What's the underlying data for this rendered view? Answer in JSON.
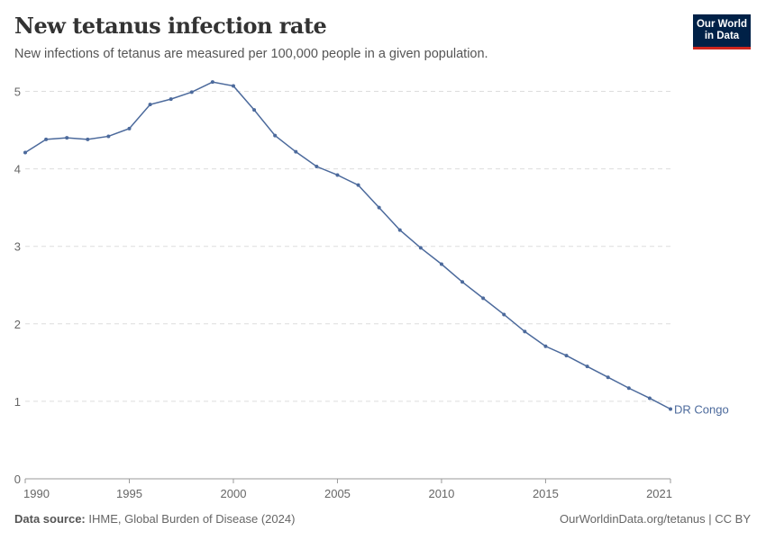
{
  "header": {
    "title": "New tetanus infection rate",
    "subtitle": "New infections of tetanus are measured per 100,000 people in a given population.",
    "logo": "Our World in Data"
  },
  "logo_lines": [
    "Our World",
    "in Data"
  ],
  "footer": {
    "source_label": "Data source:",
    "source": "IHME, Global Burden of Disease (2024)",
    "link": "OurWorldinData.org/tetanus | CC BY"
  },
  "colors": {
    "series": "#4c6a9c",
    "grid": "#dddddd",
    "logo_bg": "#002147",
    "logo_accent": "#ce261e"
  },
  "chart_data": {
    "type": "line",
    "title": "New tetanus infection rate",
    "xlabel": "",
    "ylabel": "",
    "ylim": [
      0,
      5.1
    ],
    "xlim": [
      1990,
      2021
    ],
    "grid": true,
    "yticks": [
      0,
      1,
      2,
      3,
      4,
      5
    ],
    "xticks": [
      1990,
      1995,
      2000,
      2005,
      2010,
      2015,
      2021
    ],
    "series": [
      {
        "name": "DR Congo",
        "x": [
          1990,
          1991,
          1992,
          1993,
          1994,
          1995,
          1996,
          1997,
          1998,
          1999,
          2000,
          2001,
          2002,
          2003,
          2004,
          2005,
          2006,
          2007,
          2008,
          2009,
          2010,
          2011,
          2012,
          2013,
          2014,
          2015,
          2016,
          2017,
          2018,
          2019,
          2020,
          2021
        ],
        "values": [
          4.21,
          4.38,
          4.4,
          4.38,
          4.42,
          4.52,
          4.83,
          4.9,
          4.99,
          5.12,
          5.07,
          4.76,
          4.43,
          4.22,
          4.03,
          3.92,
          3.79,
          3.5,
          3.21,
          2.98,
          2.77,
          2.54,
          2.33,
          2.12,
          1.9,
          1.71,
          1.59,
          1.45,
          1.31,
          1.17,
          1.04,
          0.9
        ]
      }
    ]
  }
}
